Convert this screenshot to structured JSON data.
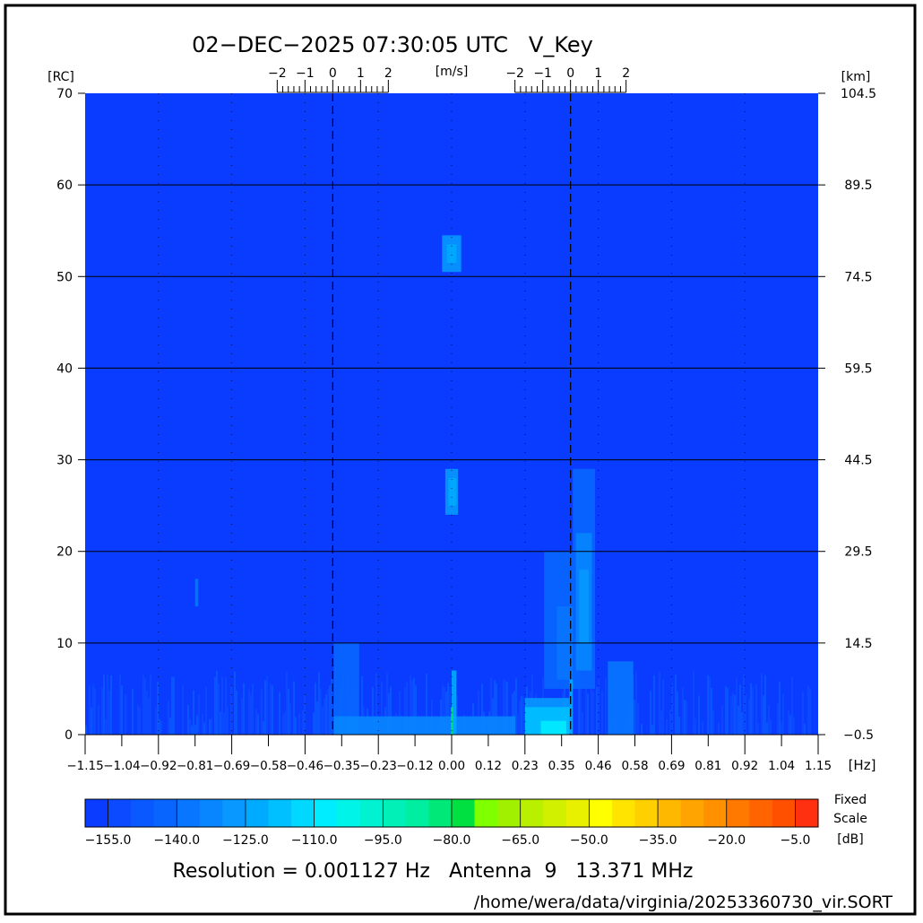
{
  "chart_data": {
    "type": "heatmap",
    "title": "02−DEC−2025 07:30:05 UTC   V_Key",
    "xlabel": "[Hz]",
    "ylabel_left": "[RC]",
    "ylabel_right": "[km]",
    "top_axis_label": "[m/s]",
    "xlim": [
      -1.15,
      1.15
    ],
    "ylim": [
      0,
      70
    ],
    "x_tick_labels": [
      "−1.15",
      "−1.04",
      "−0.92",
      "−0.81",
      "−0.69",
      "−0.58",
      "−0.46",
      "−0.35",
      "−0.23",
      "−0.12",
      "0.00",
      "0.12",
      "0.23",
      "0.35",
      "0.46",
      "0.58",
      "0.69",
      "0.81",
      "0.92",
      "1.04",
      "1.15"
    ],
    "y_ticks_rc": [
      0,
      10,
      20,
      30,
      40,
      50,
      60,
      70
    ],
    "y_tick_labels_km": [
      "−0.5",
      "14.5",
      "29.5",
      "44.5",
      "59.5",
      "74.5",
      "89.5",
      "104.5"
    ],
    "velocity_scales": [
      {
        "center_hz": -0.373,
        "tick_labels": [
          "−2",
          "−1",
          "0",
          "1",
          "2"
        ],
        "range_ms": [
          -2,
          2
        ]
      },
      {
        "center_hz": 0.373,
        "tick_labels": [
          "−2",
          "−1",
          "0",
          "1",
          "2"
        ],
        "range_ms": [
          -2,
          2
        ]
      }
    ],
    "bragg_lines_hz": [
      -0.373,
      0.373
    ],
    "grid": true,
    "background_db": -160,
    "features": [
      {
        "f0": -0.03,
        "f1": 0.03,
        "r0": 50.5,
        "r1": 54.5,
        "db": -128
      },
      {
        "f0": -0.015,
        "f1": 0.015,
        "r0": 51.5,
        "r1": 53.5,
        "db": -122
      },
      {
        "f0": -0.02,
        "f1": 0.02,
        "r0": 24,
        "r1": 29,
        "db": -130
      },
      {
        "f0": -0.01,
        "f1": 0.015,
        "r0": 25,
        "r1": 28,
        "db": -122
      },
      {
        "f0": -0.805,
        "f1": -0.795,
        "r0": 14,
        "r1": 17,
        "db": -140
      },
      {
        "f0": 0.29,
        "f1": 0.4,
        "r0": 5,
        "r1": 20,
        "db": -145
      },
      {
        "f0": 0.33,
        "f1": 0.38,
        "r0": 6,
        "r1": 14,
        "db": -138
      },
      {
        "f0": 0.38,
        "f1": 0.45,
        "r0": 5,
        "r1": 29,
        "db": -145
      },
      {
        "f0": 0.39,
        "f1": 0.44,
        "r0": 7,
        "r1": 22,
        "db": -135
      },
      {
        "f0": 0.4,
        "f1": 0.43,
        "r0": 10,
        "r1": 18,
        "db": -128
      },
      {
        "f0": 0.23,
        "f1": 0.37,
        "r0": 0,
        "r1": 4,
        "db": -130
      },
      {
        "f0": 0.23,
        "f1": 0.37,
        "r0": 0,
        "r1": 3,
        "db": -118
      },
      {
        "f0": 0.28,
        "f1": 0.36,
        "r0": 0,
        "r1": 1.5,
        "db": -110
      },
      {
        "f0": 0.37,
        "f1": 0.38,
        "r0": 0,
        "r1": 6,
        "db": -122
      },
      {
        "f0": 0.49,
        "f1": 0.57,
        "r0": 0,
        "r1": 8,
        "db": -140
      },
      {
        "f0": -0.37,
        "f1": -0.29,
        "r0": 0,
        "r1": 10,
        "db": -145
      },
      {
        "f0": -0.37,
        "f1": 0.2,
        "r0": 0,
        "r1": 2,
        "db": -135
      },
      {
        "f0": 0.0,
        "f1": 0.015,
        "r0": 0,
        "r1": 7,
        "db": -125
      },
      {
        "f0": -0.002,
        "f1": 0.004,
        "r0": 0,
        "r1": 3,
        "db": -85
      }
    ],
    "colorbar": {
      "min_db": -160,
      "max_db": 0,
      "step_db": 5,
      "tick_labels": [
        "−155.0",
        "−140.0",
        "−125.0",
        "−110.0",
        "−95.0",
        "−80.0",
        "−65.0",
        "−50.0",
        "−35.0",
        "−20.0",
        "−5.0"
      ],
      "tick_values": [
        -155,
        -140,
        -125,
        -110,
        -95,
        -80,
        -65,
        -50,
        -35,
        -20,
        -5
      ],
      "label_line1": "Fixed",
      "label_line2": "Scale",
      "unit": "[dB]",
      "colors": [
        "#0a3cff",
        "#0c4aff",
        "#0a58ff",
        "#0866ff",
        "#0876ff",
        "#0886ff",
        "#0898ff",
        "#00aaff",
        "#00c0ff",
        "#00d8ff",
        "#00ecff",
        "#00f4e8",
        "#00f2d0",
        "#00f0b8",
        "#00eea0",
        "#00e878",
        "#00e040",
        "#80ff00",
        "#a0f000",
        "#b8f000",
        "#d0f000",
        "#e8f000",
        "#ffff00",
        "#ffe400",
        "#ffd000",
        "#ffb800",
        "#ffa400",
        "#ff9000",
        "#ff7800",
        "#ff6400",
        "#ff5000",
        "#ff3010"
      ]
    }
  },
  "footer": {
    "info": "Resolution = 0.001127 Hz   Antenna  9   13.371 MHz",
    "path": "/home/wera/data/virginia/20253360730_vir.SORT"
  }
}
